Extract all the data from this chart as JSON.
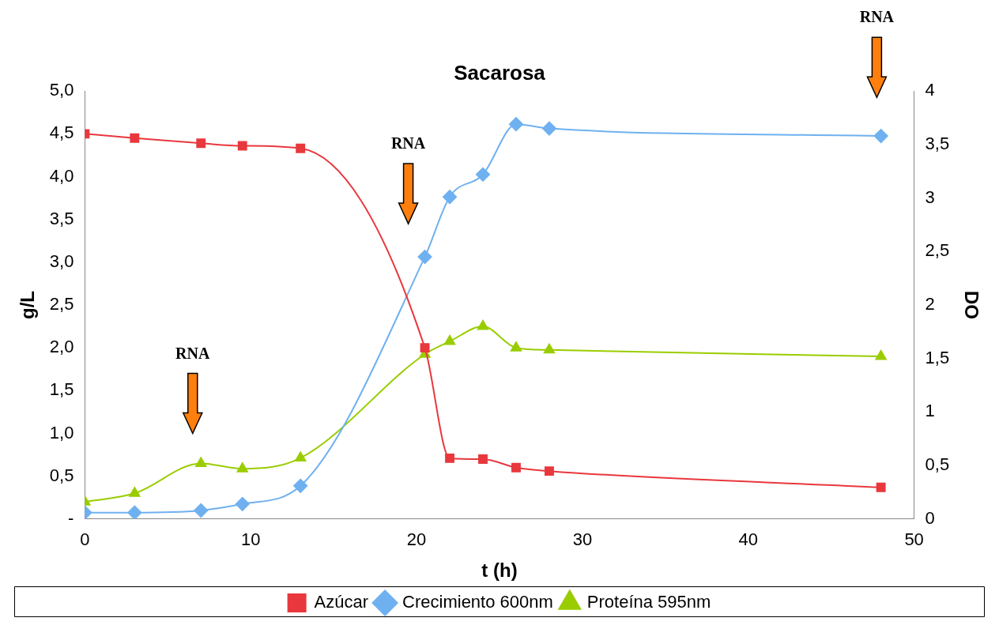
{
  "chart_data": {
    "type": "line",
    "title": "Sacarosa",
    "xlabel": "t (h)",
    "ylabel": "g/L",
    "y2label": "DO",
    "xlim": [
      0,
      50
    ],
    "xticks": [
      0,
      10,
      20,
      30,
      40,
      50
    ],
    "ylim": [
      0,
      5
    ],
    "yticks": [
      {
        "value": 0,
        "label": "-"
      },
      {
        "value": 0.5,
        "label": "0,5"
      },
      {
        "value": 1,
        "label": "1,0"
      },
      {
        "value": 1.5,
        "label": "1,5"
      },
      {
        "value": 2,
        "label": "2,0"
      },
      {
        "value": 2.5,
        "label": "2,5"
      },
      {
        "value": 3,
        "label": "3,0"
      },
      {
        "value": 3.5,
        "label": "3,5"
      },
      {
        "value": 4,
        "label": "4,0"
      },
      {
        "value": 4.5,
        "label": "4,5"
      },
      {
        "value": 5,
        "label": "5,0"
      }
    ],
    "y2lim": [
      0,
      4
    ],
    "y2ticks": [
      0,
      {
        "value": 0.5,
        "label": "0,5"
      },
      1,
      {
        "value": 1.5,
        "label": "1,5"
      },
      2,
      {
        "value": 2.5,
        "label": "2,5"
      },
      3,
      {
        "value": 3.5,
        "label": "3,5"
      },
      4
    ],
    "x": [
      0,
      3,
      7,
      9.5,
      13,
      20.5,
      22,
      24,
      26,
      28,
      48
    ],
    "series": [
      {
        "name": "Azúcar",
        "color": "#e8383d",
        "marker": "square",
        "values": [
          4.5,
          4.45,
          4.39,
          4.36,
          4.33,
          2.0,
          0.71,
          0.7,
          0.6,
          0.56,
          0.37
        ]
      },
      {
        "name": "Crecimiento 600nm",
        "color": "#6fb1f0",
        "marker": "diamond",
        "axis": "y2",
        "values": [
          0.06,
          0.06,
          0.08,
          0.14,
          0.31,
          2.45,
          3.01,
          3.22,
          3.69,
          3.65,
          3.58
        ]
      },
      {
        "name": "Proteína 595nm",
        "color": "#9acd00",
        "marker": "triangle",
        "axis": "y2",
        "values": [
          0.16,
          0.24,
          0.52,
          0.47,
          0.57,
          1.54,
          1.66,
          1.8,
          1.6,
          1.58,
          1.52
        ]
      }
    ],
    "annotations": [
      "RNA",
      "RNA",
      "RNA"
    ],
    "grid": false,
    "legend": "bottom"
  }
}
